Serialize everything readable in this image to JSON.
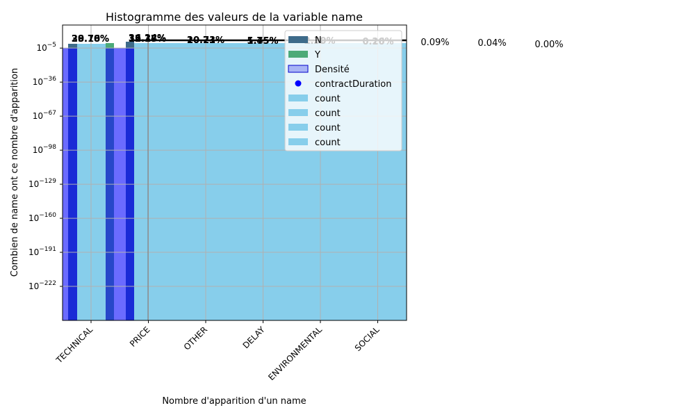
{
  "chart_data": {
    "type": "bar",
    "title": "Histogramme des valeurs de la variable name",
    "xlabel": "Nombre d'apparition d'un name",
    "ylabel": "Combien de name ont ce nombre d'apparition",
    "categories": [
      "TECHNICAL",
      "PRICE",
      "OTHER",
      "DELAY",
      "ENVIRONMENTAL",
      "SOCIAL"
    ],
    "yscale": "log",
    "ylim_exponents": [
      -253,
      16
    ],
    "yticks": [
      {
        "exp": "-5"
      },
      {
        "exp": "-36"
      },
      {
        "exp": "-67"
      },
      {
        "exp": "-98"
      },
      {
        "exp": "-129"
      },
      {
        "exp": "-160"
      },
      {
        "exp": "-191"
      },
      {
        "exp": "-222"
      }
    ],
    "grid": true,
    "legend_position": "top-right",
    "legend": [
      {
        "label": "N",
        "kind": "bar",
        "color": "#3e6b8a"
      },
      {
        "label": "Y",
        "kind": "bar",
        "color": "#4caa78"
      },
      {
        "label": "Densité",
        "kind": "patch",
        "color": "#a8b4f5"
      },
      {
        "label": "contractDuration",
        "kind": "dot",
        "color": "#0000ff"
      },
      {
        "label": "count",
        "kind": "bar",
        "color": "#87ceeb"
      },
      {
        "label": "count",
        "kind": "bar",
        "color": "#87ceeb"
      },
      {
        "label": "count",
        "kind": "bar",
        "color": "#87ceeb"
      },
      {
        "label": "count",
        "kind": "bar",
        "color": "#87ceeb"
      }
    ],
    "colors": {
      "N": "#3e6b8a",
      "Y": "#4caa78",
      "count": "#87ceeb",
      "density_dark": "#1a2bd6",
      "density_light": "#6b6bff"
    },
    "percent_labels": [
      {
        "text": "29.78%",
        "color": "#000000"
      },
      {
        "text": "28.16%",
        "color": "#000000"
      },
      {
        "text": "30.70%",
        "color": "#000000"
      },
      {
        "text": "35.17%",
        "color": "#000000"
      },
      {
        "text": "12.38%",
        "color": "#000000"
      },
      {
        "text": "36.24%",
        "color": "#000000"
      },
      {
        "text": "10.21%",
        "color": "#000000"
      },
      {
        "text": "20.73%",
        "color": "#000000"
      },
      {
        "text": "1.75%",
        "color": "#000000"
      },
      {
        "text": "5.45%",
        "color": "#000000"
      },
      {
        "text": "1.39%",
        "color": "#d8d8d8"
      },
      {
        "text": "2.30%",
        "color": "#d8d8d8"
      },
      {
        "text": "0.26%",
        "color": "#d8d8d8"
      },
      {
        "text": "0.10%",
        "color": "#d8d8d8"
      },
      {
        "text": "0.09%",
        "color": "#000000"
      },
      {
        "text": "0.04%",
        "color": "#000000"
      },
      {
        "text": "0.00%",
        "color": "#000000"
      }
    ]
  }
}
